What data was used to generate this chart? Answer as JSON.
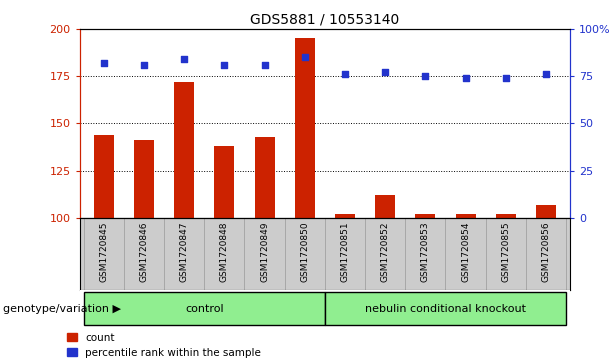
{
  "title": "GDS5881 / 10553140",
  "samples": [
    "GSM1720845",
    "GSM1720846",
    "GSM1720847",
    "GSM1720848",
    "GSM1720849",
    "GSM1720850",
    "GSM1720851",
    "GSM1720852",
    "GSM1720853",
    "GSM1720854",
    "GSM1720855",
    "GSM1720856"
  ],
  "counts": [
    144,
    141,
    172,
    138,
    143,
    195,
    102,
    112,
    102,
    102,
    102,
    107
  ],
  "percentiles": [
    82,
    81,
    84,
    81,
    81,
    85,
    76,
    77,
    75,
    74,
    74,
    76
  ],
  "control_indices": [
    0,
    1,
    2,
    3,
    4,
    5
  ],
  "knockout_indices": [
    6,
    7,
    8,
    9,
    10,
    11
  ],
  "group_labels": [
    "control",
    "nebulin conditional knockout"
  ],
  "group_label_prefix": "genotype/variation",
  "ylim_left": [
    100,
    200
  ],
  "ylim_right": [
    0,
    100
  ],
  "yticks_left": [
    100,
    125,
    150,
    175,
    200
  ],
  "yticks_right": [
    0,
    25,
    50,
    75,
    100
  ],
  "ytick_labels_left": [
    "100",
    "125",
    "150",
    "175",
    "200"
  ],
  "ytick_labels_right": [
    "0",
    "25",
    "50",
    "75",
    "100%"
  ],
  "hgrid_values": [
    125,
    150,
    175
  ],
  "bar_color": "#cc2200",
  "dot_color": "#2233cc",
  "grid_color": "#000000",
  "bar_bottom": 100,
  "bar_width": 0.5,
  "xtick_bg_color": "#cccccc",
  "group_bg_color": "#90ee90",
  "legend_count_label": "count",
  "legend_pct_label": "percentile rank within the sample"
}
